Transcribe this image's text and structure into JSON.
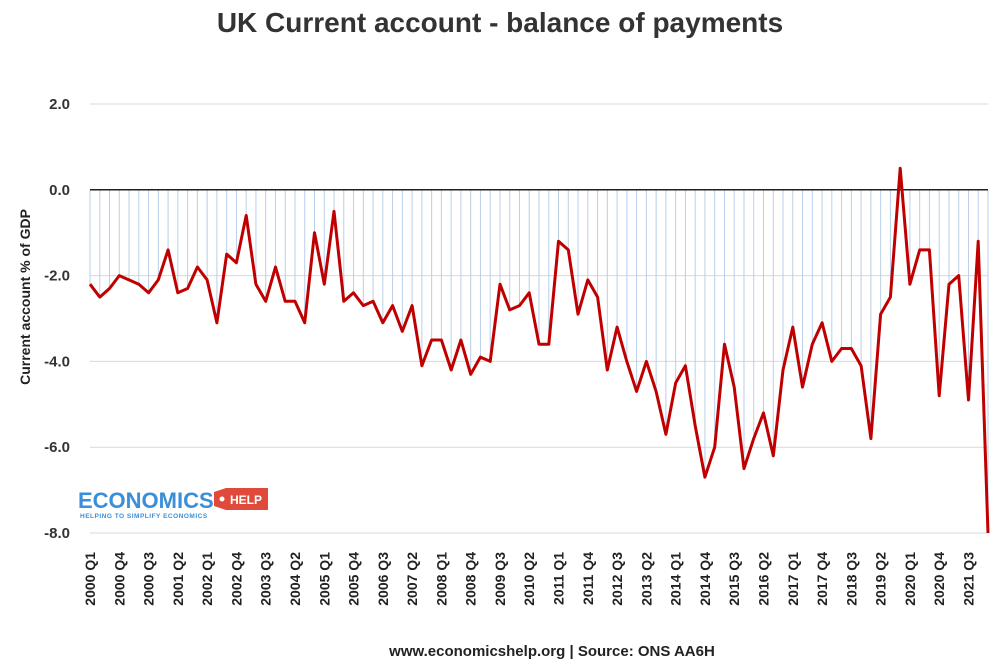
{
  "chart_data": {
    "type": "line",
    "title": "UK Current account - balance of payments",
    "ylabel": "Current account % of GDP",
    "xlabel": "",
    "ylim": [
      -8,
      2
    ],
    "yticks": [
      "2.0",
      "0.0",
      "-2.0",
      "-4.0",
      "-6.0",
      "-8.0"
    ],
    "ytick_values": [
      2,
      0,
      -2,
      -4,
      -6,
      -8
    ],
    "grid": "horizontal",
    "drop_lines": true,
    "x_tick_labels": [
      "2000 Q1",
      "2000 Q4",
      "2000 Q3",
      "2001 Q2",
      "2002 Q1",
      "2002 Q4",
      "2003 Q3",
      "2004 Q2",
      "2005 Q1",
      "2005 Q4",
      "2006 Q3",
      "2007 Q2",
      "2008 Q1",
      "2008 Q4",
      "2009 Q3",
      "2010 Q2",
      "2011 Q1",
      "2011 Q4",
      "2012 Q3",
      "2013 Q2",
      "2014 Q1",
      "2014 Q4",
      "2015 Q3",
      "2016 Q2",
      "2017 Q1",
      "2017 Q4",
      "2018 Q3",
      "2019 Q2",
      "2020 Q1",
      "2020 Q4",
      "2021 Q3"
    ],
    "series": [
      {
        "color": "#c00000",
        "values": [
          -2.2,
          -2.5,
          -2.3,
          -2.0,
          -2.1,
          -2.2,
          -2.4,
          -2.1,
          -1.4,
          -2.4,
          -2.3,
          -1.8,
          -2.1,
          -3.1,
          -1.5,
          -1.7,
          -0.6,
          -2.2,
          -2.6,
          -1.8,
          -2.6,
          -2.6,
          -3.1,
          -1.0,
          -2.2,
          -0.5,
          -2.6,
          -2.4,
          -2.7,
          -2.6,
          -3.1,
          -2.7,
          -3.3,
          -2.7,
          -4.1,
          -3.5,
          -3.5,
          -4.2,
          -3.5,
          -4.3,
          -3.9,
          -4.0,
          -2.2,
          -2.8,
          -2.7,
          -2.4,
          -3.6,
          -3.6,
          -1.2,
          -1.4,
          -2.9,
          -2.1,
          -2.5,
          -4.2,
          -3.2,
          -4.0,
          -4.7,
          -4.0,
          -4.7,
          -5.7,
          -4.5,
          -4.1,
          -5.5,
          -6.7,
          -6.0,
          -3.6,
          -4.6,
          -6.5,
          -5.8,
          -5.2,
          -6.2,
          -4.2,
          -3.2,
          -4.6,
          -3.6,
          -3.1,
          -4.0,
          -3.7,
          -3.7,
          -4.1,
          -5.8,
          -2.9,
          -2.5,
          0.5,
          -2.2,
          -1.4,
          -1.4,
          -4.8,
          -2.2,
          -2.0,
          -4.9,
          -1.2,
          -8.0
        ]
      }
    ]
  },
  "logo": {
    "main": "ECONOMICS",
    "tag": "HELP",
    "sub": "HELPING TO SIMPLIFY ECONOMICS"
  },
  "footer": {
    "source": "www.economicshelp.org | Source: ONS AA6H"
  }
}
